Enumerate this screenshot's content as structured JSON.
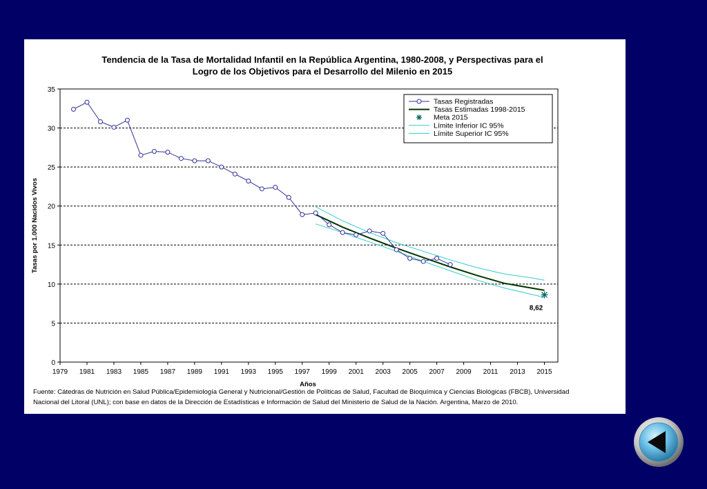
{
  "chart_data": {
    "type": "line",
    "title": [
      "Tendencia de la Tasa de Mortalidad Infantil en la República Argentina, 1980-2008, y Perspectivas para el",
      "Logro de los Objetivos para el Desarrollo del Milenio en 2015"
    ],
    "xlabel": "Años",
    "ylabel": "Tasas por 1.000 Nacidos Vivos",
    "xlim": [
      1979,
      2016
    ],
    "ylim": [
      0,
      35
    ],
    "x_ticks": [
      "1979",
      "1981",
      "1983",
      "1985",
      "1987",
      "1989",
      "1991",
      "1993",
      "1995",
      "1997",
      "1999",
      "2001",
      "2003",
      "2005",
      "2007",
      "2009",
      "2011",
      "2013",
      "2015"
    ],
    "y_ticks": [
      "0",
      "5",
      "10",
      "15",
      "20",
      "25",
      "30",
      "35"
    ],
    "grid": "horizontal dashed",
    "legend_position": "top-right",
    "series": [
      {
        "name": "Tasas Registradas",
        "color": "#2e2e99",
        "x": [
          1980,
          1981,
          1982,
          1983,
          1984,
          1985,
          1986,
          1987,
          1988,
          1989,
          1990,
          1991,
          1992,
          1993,
          1994,
          1995,
          1996,
          1997,
          1998,
          1999,
          2000,
          2001,
          2002,
          2003,
          2004,
          2005,
          2006,
          2007,
          2008
        ],
        "y": [
          32.4,
          33.3,
          30.8,
          30.1,
          31.0,
          26.5,
          27.0,
          26.9,
          26.1,
          25.8,
          25.8,
          25.0,
          24.1,
          23.2,
          22.2,
          22.4,
          21.1,
          18.9,
          19.1,
          17.6,
          16.6,
          16.3,
          16.8,
          16.5,
          14.4,
          13.3,
          12.9,
          13.3,
          12.5
        ]
      },
      {
        "name": "Tasas Estimadas 1998-2015",
        "color": "#003300",
        "x": [
          1998,
          2000,
          2002,
          2004,
          2006,
          2008,
          2010,
          2012,
          2014,
          2015
        ],
        "y": [
          18.9,
          17.3,
          15.9,
          14.6,
          13.4,
          12.2,
          11.1,
          10.1,
          9.5,
          9.2
        ]
      },
      {
        "name": "Meta 2015",
        "color": "#006666",
        "x": [
          2015
        ],
        "y": [
          8.62
        ],
        "label": "8,62"
      },
      {
        "name": "Límite Inferior IC 95%",
        "color": "#33cccc",
        "x": [
          1998,
          2000,
          2002,
          2004,
          2006,
          2008,
          2010,
          2012,
          2014,
          2015
        ],
        "y": [
          17.7,
          16.6,
          15.4,
          14.2,
          12.9,
          11.7,
          10.5,
          9.5,
          8.7,
          8.3
        ]
      },
      {
        "name": "Límite Superior IC 95%",
        "color": "#33cccc",
        "x": [
          1998,
          2000,
          2002,
          2004,
          2006,
          2008,
          2010,
          2012,
          2014,
          2015
        ],
        "y": [
          19.9,
          18.1,
          16.6,
          15.3,
          14.2,
          13.1,
          12.1,
          11.3,
          10.8,
          10.5
        ]
      }
    ]
  },
  "source": {
    "line1": "Fuente: Cátedras de Nutrición en Salud Pública/Epidemiología General y Nutricional/Gestión de Políticas de Salud, Facultad de Bioquímica y Ciencias Biológicas (FBCB), Universidad",
    "line2": "Nacional del Litoral (UNL); con base en datos de la Dirección de Estadísticas e Información de Salud del Ministerio de Salud de la Nación. Argentina, Marzo de 2010."
  },
  "nav": {
    "back_icon": "back-arrow-icon"
  }
}
